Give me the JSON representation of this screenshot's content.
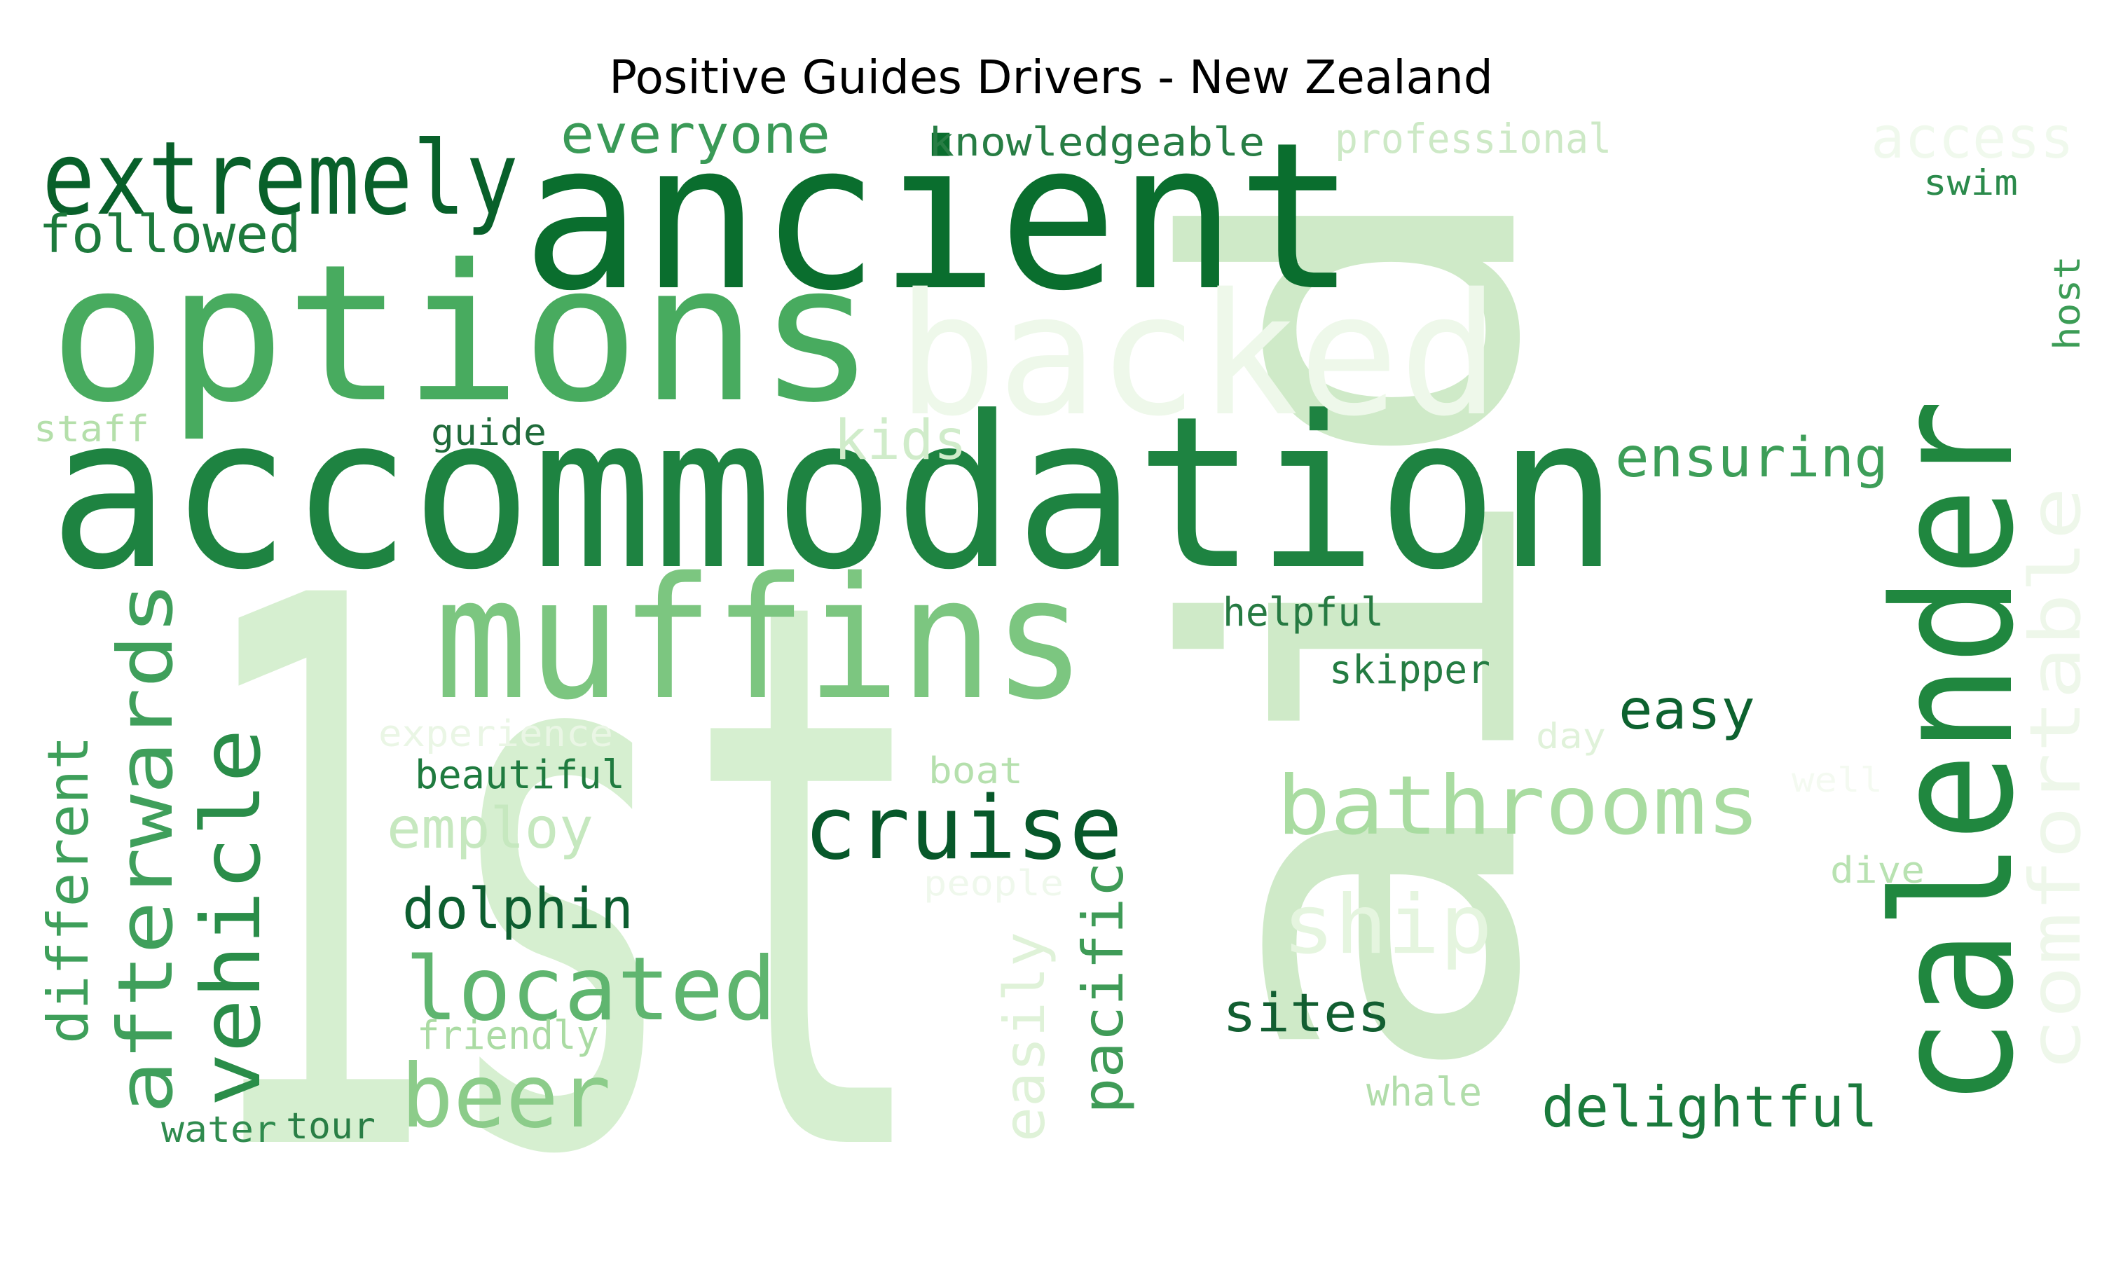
{
  "title": "Positive Guides Drivers - New Zealand",
  "words": [
    {
      "text": "1st",
      "color": "#d6efd0"
    },
    {
      "text": "aid",
      "color": "#cfeac8"
    },
    {
      "text": "accommodation",
      "color": "#1e8341"
    },
    {
      "text": "ancient",
      "color": "#0a6e2e"
    },
    {
      "text": "options",
      "color": "#48ab5f"
    },
    {
      "text": "backed",
      "color": "#eef8ea"
    },
    {
      "text": "extremely",
      "color": "#08602a"
    },
    {
      "text": "calender",
      "color": "#20873f"
    },
    {
      "text": "muffins",
      "color": "#7cc680"
    },
    {
      "text": "followed",
      "color": "#1d7a3c"
    },
    {
      "text": "everyone",
      "color": "#3a9a57"
    },
    {
      "text": "knowledgeable",
      "color": "#277d44"
    },
    {
      "text": "professional",
      "color": "#cde9c6"
    },
    {
      "text": "access",
      "color": "#f0f9ed"
    },
    {
      "text": "swim",
      "color": "#2b8a4b"
    },
    {
      "text": "host",
      "color": "#3c9c56"
    },
    {
      "text": "staff",
      "color": "#b4dfaa"
    },
    {
      "text": "guide",
      "color": "#1f6b3a"
    },
    {
      "text": "kids",
      "color": "#d0ecca"
    },
    {
      "text": "ensuring",
      "color": "#3d9e58"
    },
    {
      "text": "comfortable",
      "color": "#eef7ea"
    },
    {
      "text": "helpful",
      "color": "#267a42"
    },
    {
      "text": "skipper",
      "color": "#247c42"
    },
    {
      "text": "easy",
      "color": "#0d622f"
    },
    {
      "text": "day",
      "color": "#e0f2da"
    },
    {
      "text": "well",
      "color": "#f4faf1"
    },
    {
      "text": "dive",
      "color": "#b8e2b1"
    },
    {
      "text": "bathrooms",
      "color": "#a9dca1"
    },
    {
      "text": "ship",
      "color": "#e5f5df"
    },
    {
      "text": "sites",
      "color": "#125e31"
    },
    {
      "text": "delightful",
      "color": "#1a7a3c"
    },
    {
      "text": "whale",
      "color": "#b1ddaa"
    },
    {
      "text": "cruise",
      "color": "#07582a"
    },
    {
      "text": "boat",
      "color": "#b5e0ad"
    },
    {
      "text": "people",
      "color": "#eff8ec"
    },
    {
      "text": "pacific",
      "color": "#3f9b57"
    },
    {
      "text": "easily",
      "color": "#dff2d8"
    },
    {
      "text": "experience",
      "color": "#eaf6e5"
    },
    {
      "text": "beautiful",
      "color": "#1f7b3f"
    },
    {
      "text": "employ",
      "color": "#c6e8bf"
    },
    {
      "text": "dolphin",
      "color": "#0d5e30"
    },
    {
      "text": "located",
      "color": "#5fb56f"
    },
    {
      "text": "friendly",
      "color": "#aadba3"
    },
    {
      "text": "beer",
      "color": "#8ccc8a"
    },
    {
      "text": "different",
      "color": "#3e9f5a"
    },
    {
      "text": "afterwards",
      "color": "#3f9f5b"
    },
    {
      "text": "vehicle",
      "color": "#2a8d49"
    },
    {
      "text": "water",
      "color": "#2f8b4e"
    },
    {
      "text": "tour",
      "color": "#297e45"
    }
  ]
}
